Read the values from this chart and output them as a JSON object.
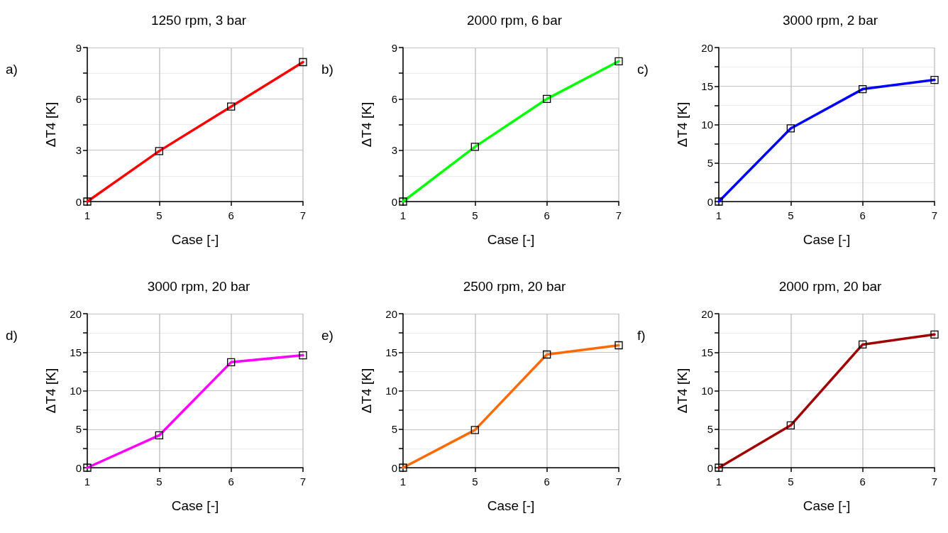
{
  "chart_data": [
    {
      "type": "line",
      "title": "1250 rpm, 3 bar",
      "annotations": [
        "a)"
      ],
      "xlabel": "Case [-]",
      "ylabel": "ΔT4 [K]",
      "categories": [
        "1",
        "5",
        "6",
        "7"
      ],
      "series": [
        {
          "color": "#ff0000",
          "values": [
            0,
            2.95,
            5.55,
            8.15
          ]
        }
      ],
      "ylim": [
        0,
        9
      ],
      "yticks": [
        0,
        {
          "value": 1.5,
          "label": null
        },
        3,
        {
          "value": 4.5,
          "label": null
        },
        6,
        {
          "value": 7.5,
          "label": null
        },
        9
      ],
      "grid": true,
      "marker": "square",
      "line_style": "solid"
    },
    {
      "type": "line",
      "title": "2000 rpm, 6 bar",
      "annotations": [
        "b)"
      ],
      "xlabel": "Case [-]",
      "ylabel": "ΔT4 [K]",
      "categories": [
        "1",
        "5",
        "6",
        "7"
      ],
      "series": [
        {
          "color": "#00ff00",
          "values": [
            0,
            3.2,
            6.0,
            8.2
          ]
        }
      ],
      "ylim": [
        0,
        9
      ],
      "yticks": [
        0,
        {
          "value": 1.5,
          "label": null
        },
        3,
        {
          "value": 4.5,
          "label": null
        },
        6,
        {
          "value": 7.5,
          "label": null
        },
        9
      ],
      "grid": true,
      "marker": "square",
      "line_style": "solid"
    },
    {
      "type": "line",
      "title": "3000 rpm, 2 bar",
      "annotations": [
        "c)"
      ],
      "xlabel": "Case [-]",
      "ylabel": "ΔT4 [K]",
      "categories": [
        "1",
        "5",
        "6",
        "7"
      ],
      "series": [
        {
          "color": "#0000ff",
          "values": [
            0,
            9.5,
            14.6,
            15.8
          ]
        }
      ],
      "ylim": [
        0,
        20
      ],
      "yticks": [
        0,
        {
          "value": 2.5,
          "label": null
        },
        5,
        {
          "value": 7.5,
          "label": null
        },
        10,
        {
          "value": 12.5,
          "label": null
        },
        15,
        {
          "value": 17.5,
          "label": null
        },
        20
      ],
      "grid": true,
      "marker": "square",
      "line_style": "solid"
    },
    {
      "type": "line",
      "title": "3000 rpm, 20 bar",
      "annotations": [
        "d)"
      ],
      "xlabel": "Case [-]",
      "ylabel": "ΔT4 [K]",
      "categories": [
        "1",
        "5",
        "6",
        "7"
      ],
      "series": [
        {
          "color": "#ff00ff",
          "values": [
            0,
            4.2,
            13.7,
            14.6
          ]
        }
      ],
      "ylim": [
        0,
        20
      ],
      "yticks": [
        0,
        {
          "value": 2.5,
          "label": null
        },
        5,
        {
          "value": 7.5,
          "label": null
        },
        10,
        {
          "value": 12.5,
          "label": null
        },
        15,
        {
          "value": 17.5,
          "label": null
        },
        20
      ],
      "grid": true,
      "marker": "square",
      "line_style": "solid"
    },
    {
      "type": "line",
      "title": "2500 rpm, 20 bar",
      "annotations": [
        "e)"
      ],
      "xlabel": "Case [-]",
      "ylabel": "ΔT4 [K]",
      "categories": [
        "1",
        "5",
        "6",
        "7"
      ],
      "series": [
        {
          "color": "#ff6a00",
          "values": [
            0,
            4.9,
            14.7,
            15.9
          ]
        }
      ],
      "ylim": [
        0,
        20
      ],
      "yticks": [
        0,
        {
          "value": 2.5,
          "label": null
        },
        5,
        {
          "value": 7.5,
          "label": null
        },
        10,
        {
          "value": 12.5,
          "label": null
        },
        15,
        {
          "value": 17.5,
          "label": null
        },
        20
      ],
      "grid": true,
      "marker": "square",
      "line_style": "solid"
    },
    {
      "type": "line",
      "title": "2000 rpm, 20 bar",
      "annotations": [
        "f)"
      ],
      "xlabel": "Case [-]",
      "ylabel": "ΔT4 [K]",
      "categories": [
        "1",
        "5",
        "6",
        "7"
      ],
      "series": [
        {
          "color": "#a00000",
          "values": [
            0,
            5.5,
            16.0,
            17.3
          ]
        }
      ],
      "ylim": [
        0,
        20
      ],
      "yticks": [
        0,
        {
          "value": 2.5,
          "label": null
        },
        5,
        {
          "value": 7.5,
          "label": null
        },
        10,
        {
          "value": 12.5,
          "label": null
        },
        15,
        {
          "value": 17.5,
          "label": null
        },
        20
      ],
      "grid": true,
      "marker": "square",
      "line_style": "solid"
    }
  ]
}
